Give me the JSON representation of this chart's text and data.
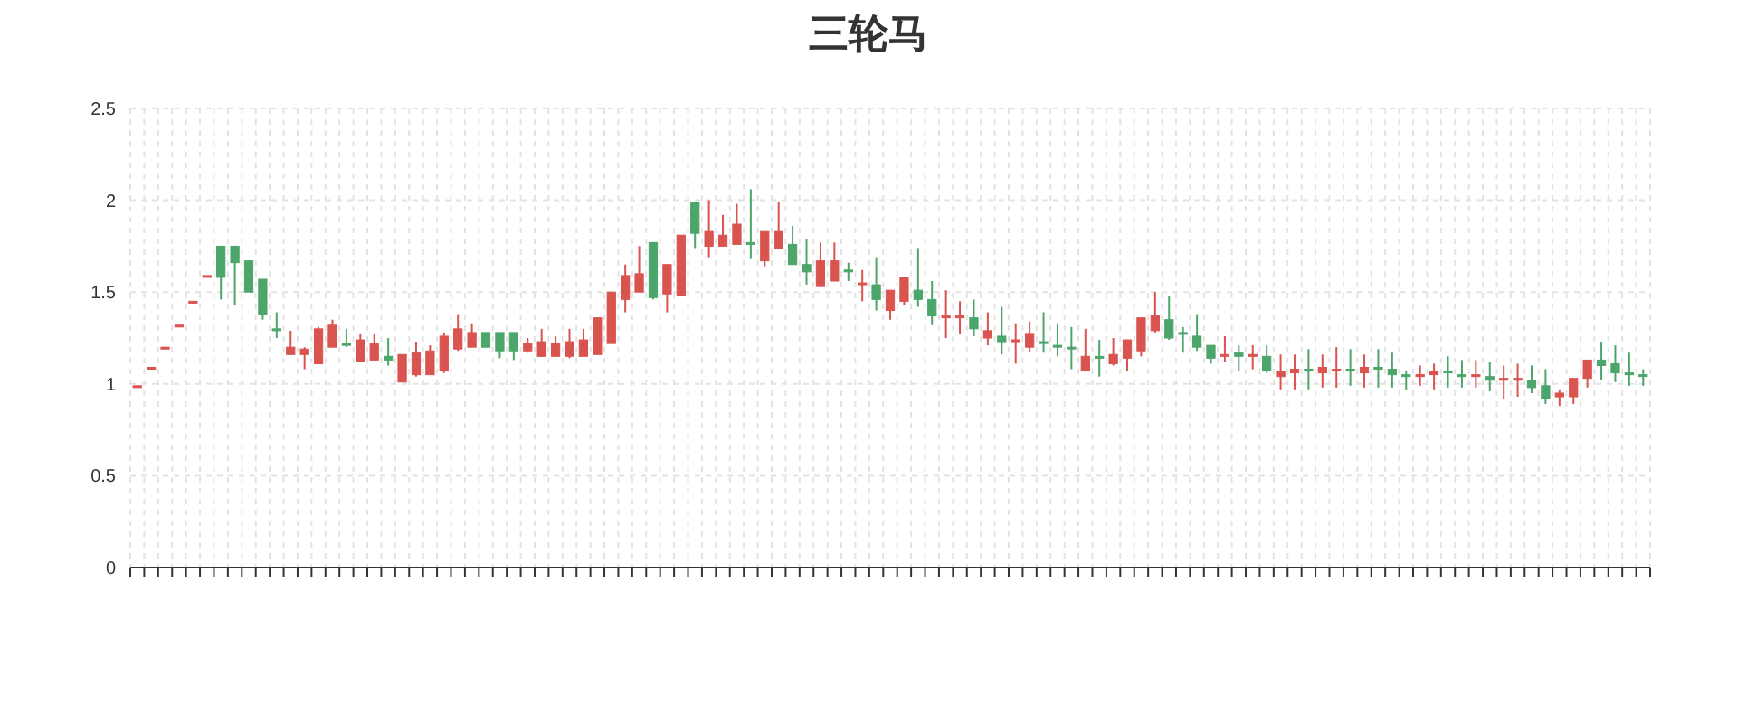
{
  "chart_data": {
    "type": "candlestick",
    "title": "三轮马",
    "categories": [
      null,
      null,
      null,
      null,
      null,
      null,
      null,
      null,
      null,
      null,
      null,
      null,
      null,
      null,
      null,
      null,
      null,
      null,
      null,
      null,
      null,
      null,
      null,
      null,
      null,
      null,
      null,
      null,
      null,
      null,
      null,
      null,
      null,
      null,
      null,
      null,
      null,
      null,
      null,
      null,
      null,
      null,
      null,
      null,
      null,
      null,
      null,
      null,
      null,
      null,
      null,
      null,
      null,
      null,
      null,
      null,
      null,
      null,
      null,
      null,
      null,
      null,
      null,
      null,
      null,
      null,
      null,
      null,
      null,
      null,
      null,
      null,
      null,
      null,
      null,
      null,
      null,
      null,
      null,
      null,
      null,
      null,
      null,
      null,
      null,
      null,
      null,
      null,
      null,
      null,
      null,
      null,
      null,
      null,
      null,
      null,
      null,
      null,
      null,
      null,
      null,
      null,
      null,
      null,
      null,
      null,
      null,
      null,
      null
    ],
    "ohlc": [
      [
        0.98,
        0.99,
        0.98,
        0.99
      ],
      [
        1.08,
        1.09,
        1.08,
        1.09
      ],
      [
        1.19,
        1.2,
        1.19,
        1.2
      ],
      [
        1.31,
        1.32,
        1.31,
        1.32
      ],
      [
        1.44,
        1.45,
        1.44,
        1.45
      ],
      [
        1.58,
        1.59,
        1.58,
        1.59
      ],
      [
        1.75,
        1.75,
        1.46,
        1.58
      ],
      [
        1.75,
        1.75,
        1.43,
        1.66
      ],
      [
        1.67,
        1.67,
        1.5,
        1.5
      ],
      [
        1.57,
        1.57,
        1.35,
        1.38
      ],
      [
        1.3,
        1.39,
        1.25,
        1.29
      ],
      [
        1.16,
        1.29,
        1.16,
        1.2
      ],
      [
        1.16,
        1.2,
        1.08,
        1.19
      ],
      [
        1.11,
        1.31,
        1.11,
        1.3
      ],
      [
        1.2,
        1.35,
        1.2,
        1.32
      ],
      [
        1.22,
        1.3,
        1.2,
        1.21
      ],
      [
        1.12,
        1.27,
        1.12,
        1.24
      ],
      [
        1.13,
        1.27,
        1.13,
        1.22
      ],
      [
        1.15,
        1.25,
        1.1,
        1.13
      ],
      [
        1.01,
        1.16,
        1.01,
        1.16
      ],
      [
        1.05,
        1.23,
        1.04,
        1.17
      ],
      [
        1.05,
        1.21,
        1.05,
        1.18
      ],
      [
        1.07,
        1.28,
        1.06,
        1.26
      ],
      [
        1.19,
        1.38,
        1.18,
        1.3
      ],
      [
        1.2,
        1.33,
        1.2,
        1.28
      ],
      [
        1.28,
        1.28,
        1.2,
        1.2
      ],
      [
        1.28,
        1.28,
        1.14,
        1.18
      ],
      [
        1.28,
        1.28,
        1.13,
        1.18
      ],
      [
        1.18,
        1.25,
        1.17,
        1.22
      ],
      [
        1.15,
        1.3,
        1.15,
        1.23
      ],
      [
        1.15,
        1.26,
        1.15,
        1.22
      ],
      [
        1.15,
        1.3,
        1.14,
        1.23
      ],
      [
        1.15,
        1.3,
        1.15,
        1.24
      ],
      [
        1.16,
        1.36,
        1.16,
        1.36
      ],
      [
        1.22,
        1.5,
        1.22,
        1.5
      ],
      [
        1.46,
        1.65,
        1.39,
        1.59
      ],
      [
        1.5,
        1.75,
        1.5,
        1.6
      ],
      [
        1.77,
        1.77,
        1.46,
        1.47
      ],
      [
        1.49,
        1.65,
        1.39,
        1.65
      ],
      [
        1.48,
        1.81,
        1.48,
        1.81
      ],
      [
        1.99,
        1.99,
        1.74,
        1.82
      ],
      [
        1.75,
        2.0,
        1.69,
        1.83
      ],
      [
        1.75,
        1.92,
        1.75,
        1.81
      ],
      [
        1.76,
        1.98,
        1.76,
        1.87
      ],
      [
        1.77,
        2.06,
        1.68,
        1.76
      ],
      [
        1.67,
        1.83,
        1.64,
        1.83
      ],
      [
        1.74,
        1.99,
        1.74,
        1.83
      ],
      [
        1.76,
        1.86,
        1.65,
        1.65
      ],
      [
        1.65,
        1.79,
        1.54,
        1.61
      ],
      [
        1.53,
        1.77,
        1.53,
        1.67
      ],
      [
        1.56,
        1.77,
        1.56,
        1.67
      ],
      [
        1.62,
        1.66,
        1.56,
        1.61
      ],
      [
        1.54,
        1.62,
        1.45,
        1.55
      ],
      [
        1.54,
        1.69,
        1.4,
        1.46
      ],
      [
        1.4,
        1.51,
        1.35,
        1.51
      ],
      [
        1.45,
        1.58,
        1.43,
        1.58
      ],
      [
        1.51,
        1.74,
        1.42,
        1.46
      ],
      [
        1.46,
        1.56,
        1.32,
        1.37
      ],
      [
        1.36,
        1.51,
        1.25,
        1.37
      ],
      [
        1.36,
        1.45,
        1.27,
        1.37
      ],
      [
        1.36,
        1.46,
        1.26,
        1.3
      ],
      [
        1.25,
        1.39,
        1.21,
        1.29
      ],
      [
        1.26,
        1.42,
        1.16,
        1.23
      ],
      [
        1.23,
        1.33,
        1.11,
        1.24
      ],
      [
        1.2,
        1.34,
        1.17,
        1.27
      ],
      [
        1.23,
        1.39,
        1.17,
        1.22
      ],
      [
        1.21,
        1.33,
        1.15,
        1.2
      ],
      [
        1.2,
        1.31,
        1.08,
        1.19
      ],
      [
        1.07,
        1.3,
        1.07,
        1.15
      ],
      [
        1.15,
        1.24,
        1.04,
        1.14
      ],
      [
        1.11,
        1.25,
        1.1,
        1.16
      ],
      [
        1.14,
        1.24,
        1.07,
        1.24
      ],
      [
        1.18,
        1.36,
        1.15,
        1.36
      ],
      [
        1.29,
        1.5,
        1.28,
        1.37
      ],
      [
        1.35,
        1.48,
        1.24,
        1.25
      ],
      [
        1.28,
        1.31,
        1.17,
        1.27
      ],
      [
        1.26,
        1.38,
        1.18,
        1.2
      ],
      [
        1.21,
        1.21,
        1.11,
        1.14
      ],
      [
        1.15,
        1.26,
        1.12,
        1.16
      ],
      [
        1.17,
        1.21,
        1.07,
        1.15
      ],
      [
        1.15,
        1.21,
        1.08,
        1.16
      ],
      [
        1.15,
        1.21,
        1.06,
        1.07
      ],
      [
        1.04,
        1.16,
        0.97,
        1.07
      ],
      [
        1.06,
        1.16,
        0.97,
        1.08
      ],
      [
        1.08,
        1.19,
        0.97,
        1.07
      ],
      [
        1.06,
        1.16,
        0.98,
        1.09
      ],
      [
        1.07,
        1.2,
        0.98,
        1.08
      ],
      [
        1.08,
        1.19,
        0.99,
        1.07
      ],
      [
        1.06,
        1.16,
        0.98,
        1.09
      ],
      [
        1.09,
        1.19,
        0.98,
        1.08
      ],
      [
        1.08,
        1.17,
        0.98,
        1.05
      ],
      [
        1.05,
        1.07,
        0.97,
        1.04
      ],
      [
        1.04,
        1.1,
        0.99,
        1.05
      ],
      [
        1.05,
        1.11,
        0.97,
        1.07
      ],
      [
        1.07,
        1.15,
        0.98,
        1.06
      ],
      [
        1.05,
        1.13,
        0.98,
        1.04
      ],
      [
        1.04,
        1.13,
        0.98,
        1.05
      ],
      [
        1.04,
        1.12,
        0.96,
        1.02
      ],
      [
        1.02,
        1.1,
        0.92,
        1.03
      ],
      [
        1.02,
        1.11,
        0.93,
        1.03
      ],
      [
        1.02,
        1.1,
        0.95,
        0.98
      ],
      [
        0.99,
        1.08,
        0.89,
        0.92
      ],
      [
        0.93,
        0.97,
        0.88,
        0.95
      ],
      [
        0.93,
        1.03,
        0.89,
        1.03
      ],
      [
        1.03,
        1.13,
        0.98,
        1.13
      ],
      [
        1.13,
        1.23,
        1.02,
        1.1
      ],
      [
        1.11,
        1.21,
        1.01,
        1.06
      ],
      [
        1.06,
        1.17,
        0.99,
        1.05
      ],
      [
        1.05,
        1.08,
        0.99,
        1.04
      ]
    ],
    "colors": [
      "#d9534f",
      "#d9534f",
      "#d9534f",
      "#d9534f",
      "#d9534f",
      "#d9534f",
      "#4ca56a",
      "#4ca56a",
      "#4ca56a",
      "#4ca56a",
      "#4ca56a",
      "#d9534f",
      "#d9534f",
      "#d9534f",
      "#d9534f",
      "#4ca56a",
      "#d9534f",
      "#d9534f",
      "#4ca56a",
      "#d9534f",
      "#d9534f",
      "#d9534f",
      "#d9534f",
      "#d9534f",
      "#d9534f",
      "#4ca56a",
      "#4ca56a",
      "#4ca56a",
      "#d9534f",
      "#d9534f",
      "#d9534f",
      "#d9534f",
      "#d9534f",
      "#d9534f",
      "#d9534f",
      "#d9534f",
      "#d9534f",
      "#4ca56a",
      "#d9534f",
      "#d9534f",
      "#4ca56a",
      "#d9534f",
      "#d9534f",
      "#d9534f",
      "#4ca56a",
      "#d9534f",
      "#d9534f",
      "#4ca56a",
      "#4ca56a",
      "#d9534f",
      "#d9534f",
      "#4ca56a",
      "#d9534f",
      "#4ca56a",
      "#d9534f",
      "#d9534f",
      "#4ca56a",
      "#4ca56a",
      "#d9534f",
      "#d9534f",
      "#4ca56a",
      "#d9534f",
      "#4ca56a",
      "#d9534f",
      "#d9534f",
      "#4ca56a",
      "#4ca56a",
      "#4ca56a",
      "#d9534f",
      "#4ca56a",
      "#d9534f",
      "#d9534f",
      "#d9534f",
      "#d9534f",
      "#4ca56a",
      "#4ca56a",
      "#4ca56a",
      "#4ca56a",
      "#d9534f",
      "#4ca56a",
      "#d9534f",
      "#4ca56a",
      "#d9534f",
      "#d9534f",
      "#4ca56a",
      "#d9534f",
      "#d9534f",
      "#4ca56a",
      "#d9534f",
      "#4ca56a",
      "#4ca56a",
      "#4ca56a",
      "#d9534f",
      "#d9534f",
      "#4ca56a",
      "#4ca56a",
      "#d9534f",
      "#4ca56a",
      "#d9534f",
      "#d9534f",
      "#4ca56a",
      "#4ca56a",
      "#d9534f",
      "#d9534f",
      "#d9534f",
      "#4ca56a",
      "#4ca56a",
      "#4ca56a",
      "#4ca56a"
    ],
    "ylim": [
      0,
      2.5
    ],
    "yticks": [
      0,
      0.5,
      1,
      1.5,
      2,
      2.5
    ],
    "grid": true
  }
}
